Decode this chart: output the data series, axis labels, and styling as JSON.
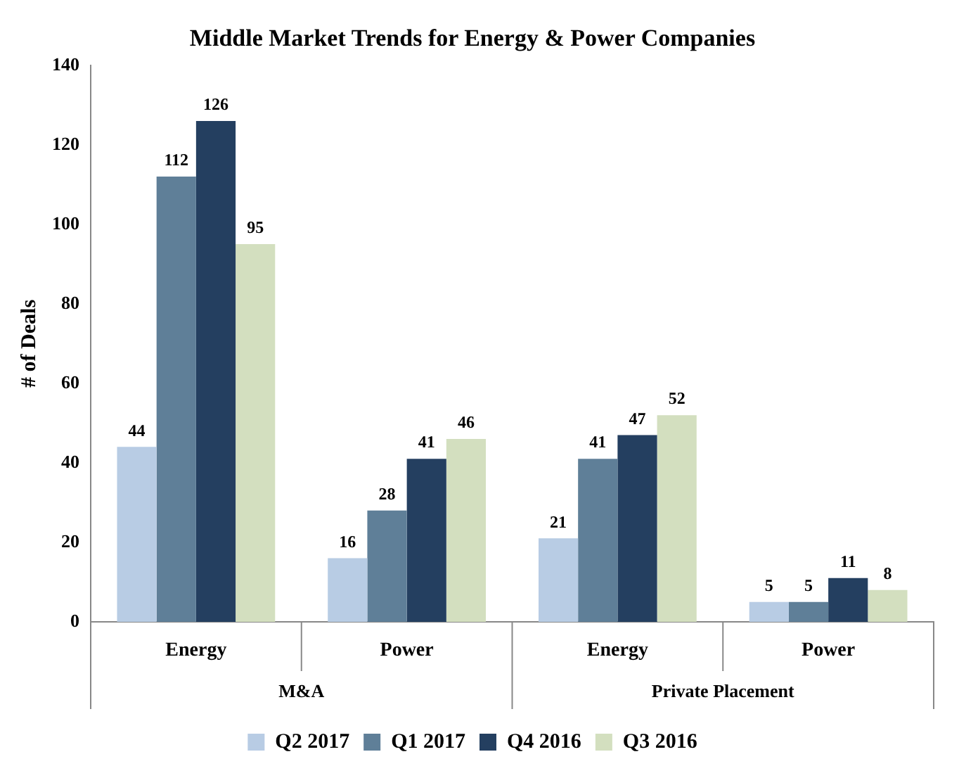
{
  "chart_data": {
    "type": "bar",
    "title": "Middle Market Trends for Energy & Power Companies",
    "ylabel": "# of Deals",
    "categories": [
      "Energy",
      "Power",
      "Energy",
      "Power"
    ],
    "series": [
      {
        "name": "Q2 2017",
        "color": "#b8cce4",
        "values": [
          44,
          16,
          21,
          5
        ]
      },
      {
        "name": "Q1 2017",
        "color": "#5f7f98",
        "values": [
          112,
          28,
          41,
          5
        ]
      },
      {
        "name": "Q4 2016",
        "color": "#243f60",
        "values": [
          126,
          41,
          47,
          11
        ]
      },
      {
        "name": "Q3 2016",
        "color": "#d3dfbf",
        "values": [
          95,
          46,
          52,
          8
        ]
      }
    ],
    "annotations": [
      "M&A",
      "Private Placement"
    ],
    "ylim": [
      0,
      140
    ],
    "yticks": [
      0,
      20,
      40,
      60,
      80,
      100,
      120,
      140
    ],
    "data_labels": true,
    "legend": "bottom"
  }
}
